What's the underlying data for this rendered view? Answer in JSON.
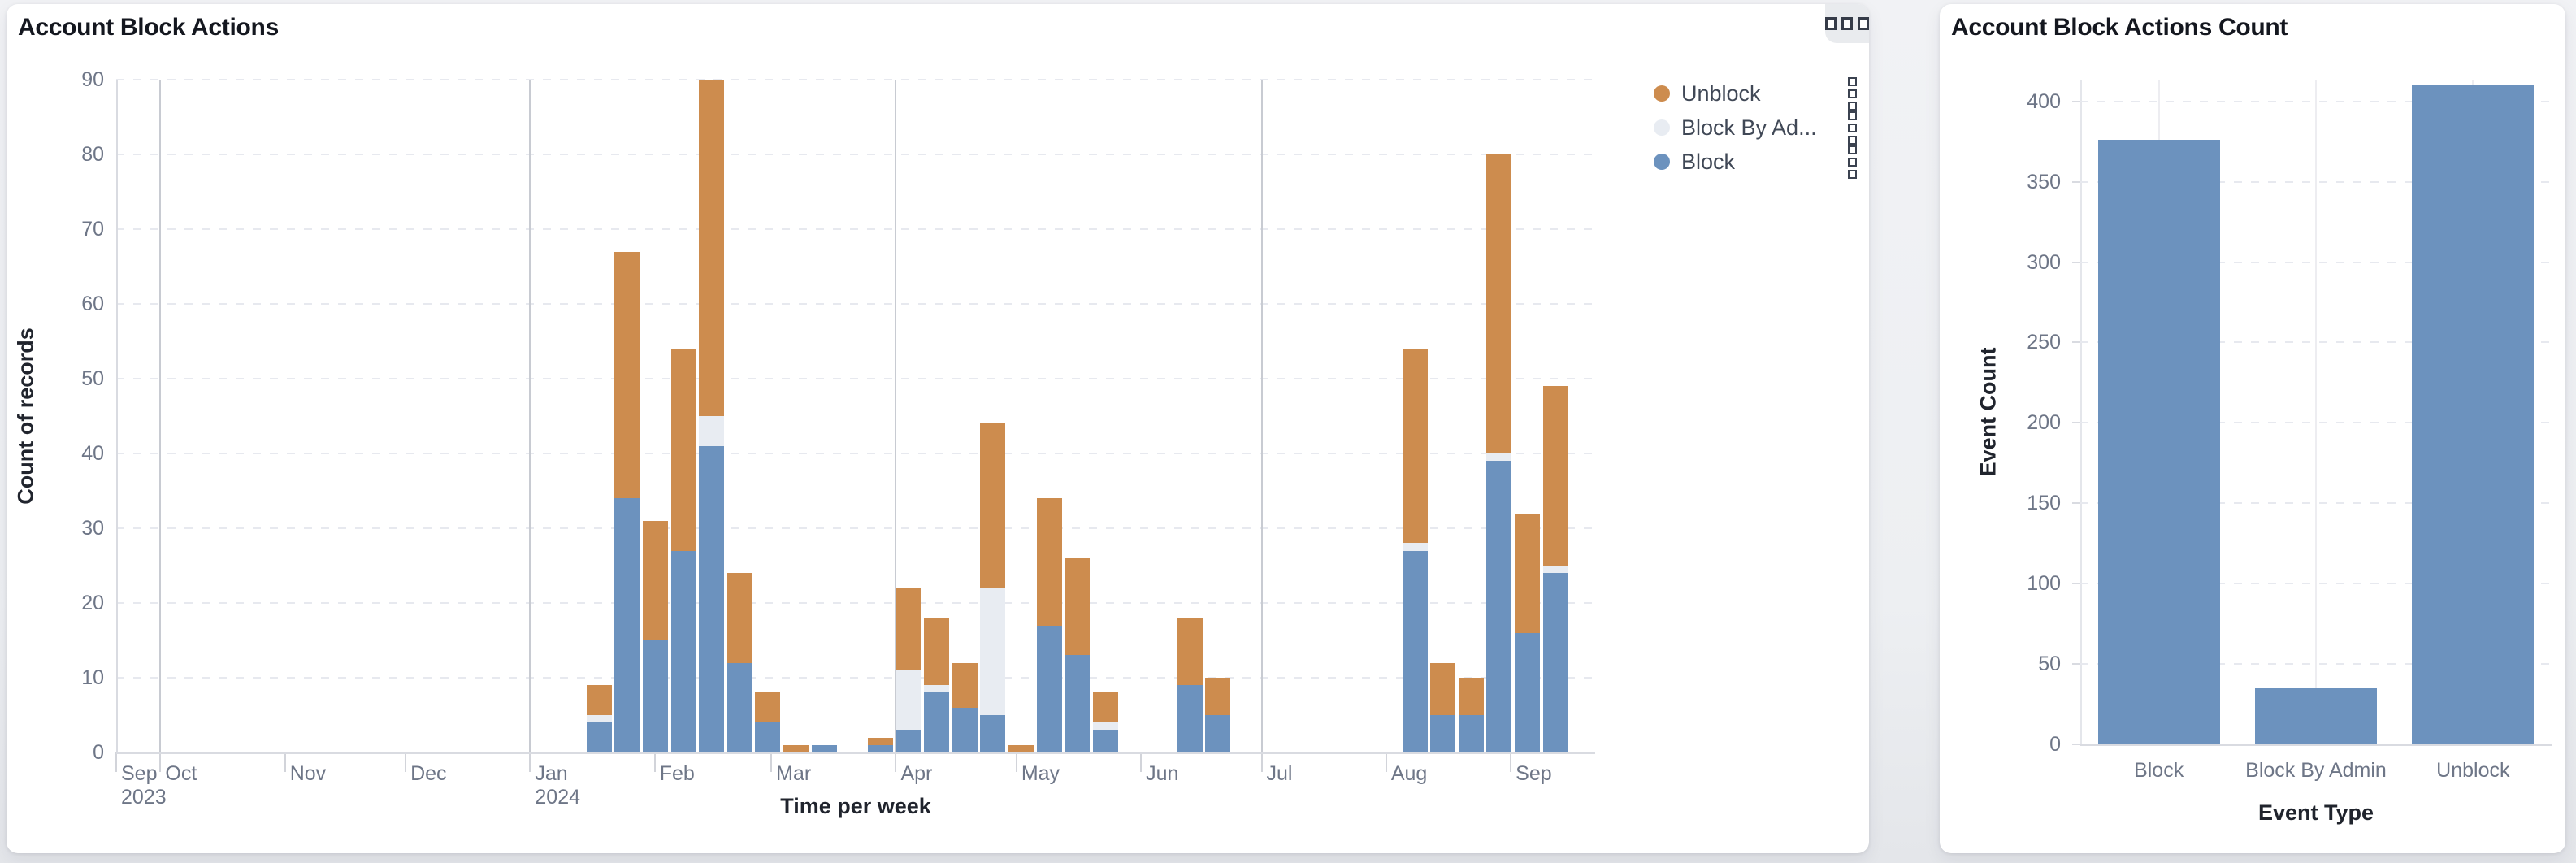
{
  "page": {
    "background": "#edeff2"
  },
  "left_card": {
    "title": "Account Block Actions",
    "actions_button": {
      "icon": "three-squares-icon"
    },
    "legend": [
      {
        "label": "Unblock",
        "color": "#cd8c4e"
      },
      {
        "label": "Block By Ad...",
        "color": "#e8ecf2"
      },
      {
        "label": "Block",
        "color": "#6c92be"
      }
    ]
  },
  "right_card": {
    "title": "Account Block Actions Count"
  },
  "chart_data": [
    {
      "type": "bar",
      "stacked": true,
      "title": "Account Block Actions",
      "xlabel": "Time per week",
      "ylabel": "Count of records",
      "ylim": [
        0,
        90
      ],
      "y_ticks": [
        0,
        10,
        20,
        30,
        40,
        50,
        60,
        70,
        80,
        90
      ],
      "grid": "dashed-horizontal",
      "legend_position": "top-right",
      "x_time_domain": [
        "2023-09-20",
        "2024-09-22"
      ],
      "series_order": [
        "Block",
        "Block By Admin",
        "Unblock"
      ],
      "colors": {
        "Block": "#6c92be",
        "Block By Admin": "#e8ecf2",
        "Unblock": "#cd8c4e"
      },
      "month_ticks": [
        {
          "date": "2023-09-20",
          "label": "Sep",
          "sub": "2023"
        },
        {
          "date": "2023-10-01",
          "label": "Oct"
        },
        {
          "date": "2023-11-01",
          "label": "Nov"
        },
        {
          "date": "2023-12-01",
          "label": "Dec"
        },
        {
          "date": "2024-01-01",
          "label": "Jan",
          "sub": "2024"
        },
        {
          "date": "2024-02-01",
          "label": "Feb"
        },
        {
          "date": "2024-03-01",
          "label": "Mar"
        },
        {
          "date": "2024-04-01",
          "label": "Apr"
        },
        {
          "date": "2024-05-01",
          "label": "May"
        },
        {
          "date": "2024-06-01",
          "label": "Jun"
        },
        {
          "date": "2024-07-01",
          "label": "Jul"
        },
        {
          "date": "2024-08-01",
          "label": "Aug"
        },
        {
          "date": "2024-09-01",
          "label": "Sep"
        }
      ],
      "quarter_lines": [
        "2023-10-01",
        "2024-01-01",
        "2024-04-01",
        "2024-07-01"
      ],
      "weeks": [
        {
          "week": "2024-01-15",
          "Block": 4,
          "Block By Admin": 1,
          "Unblock": 4
        },
        {
          "week": "2024-01-22",
          "Block": 34,
          "Block By Admin": 0,
          "Unblock": 33
        },
        {
          "week": "2024-01-29",
          "Block": 15,
          "Block By Admin": 0,
          "Unblock": 16
        },
        {
          "week": "2024-02-05",
          "Block": 27,
          "Block By Admin": 0,
          "Unblock": 27
        },
        {
          "week": "2024-02-12",
          "Block": 41,
          "Block By Admin": 4,
          "Unblock": 45
        },
        {
          "week": "2024-02-19",
          "Block": 12,
          "Block By Admin": 0,
          "Unblock": 12
        },
        {
          "week": "2024-02-26",
          "Block": 4,
          "Block By Admin": 0,
          "Unblock": 4
        },
        {
          "week": "2024-03-04",
          "Block": 0,
          "Block By Admin": 0,
          "Unblock": 1
        },
        {
          "week": "2024-03-11",
          "Block": 1,
          "Block By Admin": 0,
          "Unblock": 0
        },
        {
          "week": "2024-03-25",
          "Block": 1,
          "Block By Admin": 0,
          "Unblock": 1
        },
        {
          "week": "2024-04-01",
          "Block": 3,
          "Block By Admin": 8,
          "Unblock": 11
        },
        {
          "week": "2024-04-08",
          "Block": 8,
          "Block By Admin": 1,
          "Unblock": 9
        },
        {
          "week": "2024-04-15",
          "Block": 6,
          "Block By Admin": 0,
          "Unblock": 6
        },
        {
          "week": "2024-04-22",
          "Block": 5,
          "Block By Admin": 17,
          "Unblock": 22
        },
        {
          "week": "2024-04-29",
          "Block": 0,
          "Block By Admin": 0,
          "Unblock": 1
        },
        {
          "week": "2024-05-06",
          "Block": 17,
          "Block By Admin": 0,
          "Unblock": 17
        },
        {
          "week": "2024-05-13",
          "Block": 13,
          "Block By Admin": 0,
          "Unblock": 13
        },
        {
          "week": "2024-05-20",
          "Block": 3,
          "Block By Admin": 1,
          "Unblock": 4
        },
        {
          "week": "2024-06-10",
          "Block": 9,
          "Block By Admin": 0,
          "Unblock": 9
        },
        {
          "week": "2024-06-17",
          "Block": 5,
          "Block By Admin": 0,
          "Unblock": 5
        },
        {
          "week": "2024-08-05",
          "Block": 27,
          "Block By Admin": 1,
          "Unblock": 26
        },
        {
          "week": "2024-08-12",
          "Block": 5,
          "Block By Admin": 0,
          "Unblock": 7
        },
        {
          "week": "2024-08-19",
          "Block": 5,
          "Block By Admin": 0,
          "Unblock": 5
        },
        {
          "week": "2024-08-26",
          "Block": 39,
          "Block By Admin": 1,
          "Unblock": 40
        },
        {
          "week": "2024-09-02",
          "Block": 16,
          "Block By Admin": 0,
          "Unblock": 16
        },
        {
          "week": "2024-09-09",
          "Block": 24,
          "Block By Admin": 1,
          "Unblock": 24
        }
      ]
    },
    {
      "type": "bar",
      "title": "Account Block Actions Count",
      "xlabel": "Event Type",
      "ylabel": "Event Count",
      "categories": [
        "Block",
        "Block By Admin",
        "Unblock"
      ],
      "values": [
        376,
        35,
        410
      ],
      "ylim": [
        0,
        413
      ],
      "y_ticks": [
        0,
        50,
        100,
        150,
        200,
        250,
        300,
        350,
        400
      ],
      "grid": "dashed-horizontal",
      "bar_color": "#6c92be"
    }
  ]
}
